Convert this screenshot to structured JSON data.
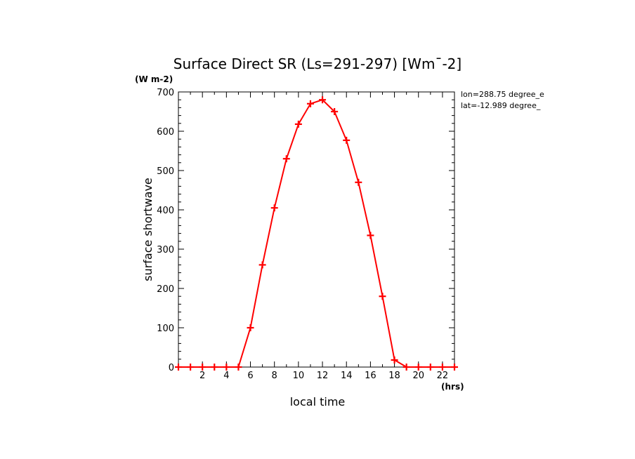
{
  "chart_data": {
    "type": "line",
    "title": "Surface Direct SR (Ls=291-297) [Wm¯-2]",
    "xlabel": "local time",
    "ylabel": "surface shortwave",
    "x_unit": "(hrs)",
    "y_unit": "(W m-2)",
    "annotations": [
      "lon=288.75 degree_e",
      "lat=-12.989 degree_"
    ],
    "xlim": [
      0,
      23
    ],
    "ylim": [
      0,
      700
    ],
    "x_ticks": [
      2,
      4,
      6,
      8,
      10,
      12,
      14,
      16,
      18,
      20,
      22
    ],
    "y_ticks": [
      0,
      100,
      200,
      300,
      400,
      500,
      600,
      700
    ],
    "grid": false,
    "series": [
      {
        "color": "#ff0000",
        "line_color": "#1a1ab0",
        "marker": "plus",
        "x": [
          0.0,
          1.0,
          2.0,
          3.0,
          4.0,
          5.0,
          6.0,
          7.0,
          8.0,
          9.0,
          10.0,
          11.0,
          12.0,
          13.0,
          14.0,
          15.0,
          16.0,
          17.0,
          18.0,
          19.0,
          20.0,
          21.0,
          22.0,
          23.0
        ],
        "values": [
          0,
          0,
          0,
          0,
          0,
          0,
          100,
          260,
          405,
          530,
          618,
          670,
          680,
          650,
          577,
          470,
          335,
          180,
          18,
          0,
          0,
          0,
          0,
          0
        ]
      }
    ]
  }
}
